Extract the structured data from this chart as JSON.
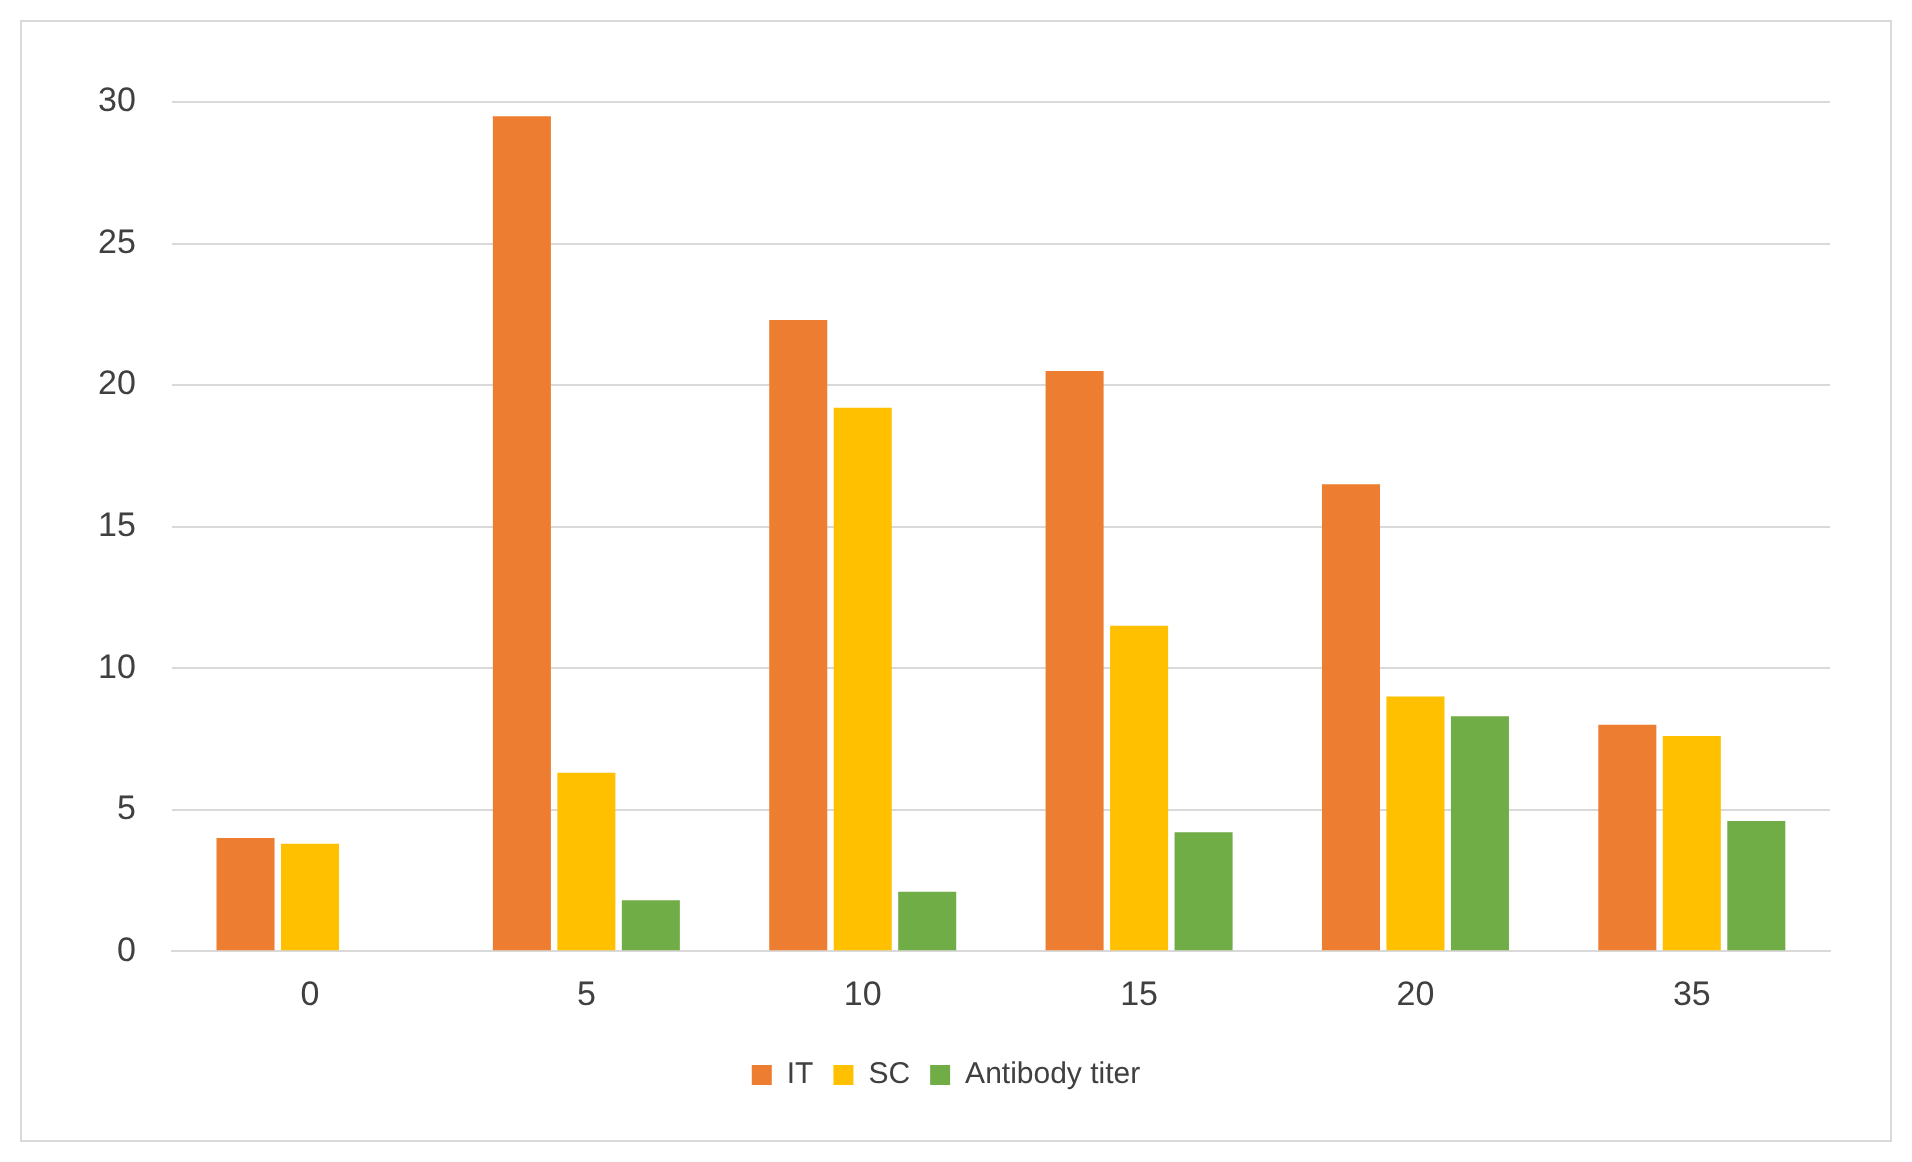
{
  "chart_data": {
    "type": "bar",
    "categories": [
      "0",
      "5",
      "10",
      "15",
      "20",
      "35"
    ],
    "series": [
      {
        "name": "IT",
        "color": "#ed7d31",
        "values": [
          4,
          29.5,
          22.3,
          20.5,
          16.5,
          8
        ]
      },
      {
        "name": "SC",
        "color": "#ffc000",
        "values": [
          3.8,
          6.3,
          19.2,
          11.5,
          9,
          7.6
        ]
      },
      {
        "name": "Antibody titer",
        "color": "#70ad47",
        "values": [
          0,
          1.8,
          2.1,
          4.2,
          8.3,
          4.6
        ]
      }
    ],
    "ylim": [
      0,
      30
    ],
    "yticks": [
      0,
      5,
      10,
      15,
      20,
      25,
      30
    ],
    "grid": "y",
    "legend": "bottom"
  }
}
